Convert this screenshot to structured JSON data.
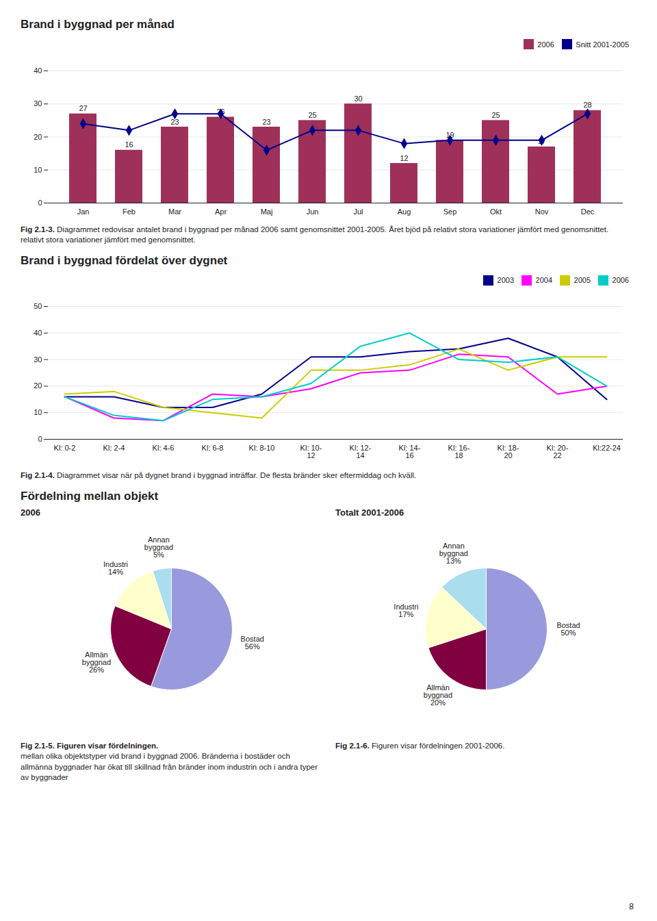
{
  "chart_data": [
    {
      "type": "bar",
      "title": "Brand i byggnad per månad",
      "categories": [
        "Jan",
        "Feb",
        "Mar",
        "Apr",
        "Maj",
        "Jun",
        "Jul",
        "Aug",
        "Sep",
        "Okt",
        "Nov",
        "Dec"
      ],
      "series": [
        {
          "name": "2006",
          "type": "bar",
          "color": "#9e3059",
          "data_labels": true,
          "values": [
            27,
            16,
            23,
            26,
            23,
            25,
            30,
            12,
            19,
            25,
            17,
            28
          ]
        },
        {
          "name": "Snitt 2001-2005",
          "type": "line",
          "color": "#00008b",
          "marker": "diamond",
          "values": [
            24,
            22,
            27,
            27,
            16,
            22,
            22,
            18,
            19,
            19,
            19,
            27
          ]
        }
      ],
      "ylim": [
        0,
        40
      ],
      "yticks": [
        0,
        10,
        20,
        30,
        40
      ],
      "grid": true,
      "legend": "upper right",
      "caption": [
        [
          "Fig 2.1-3.",
          " Diagrammet redovisar antalet brand i byggnad per månad 2006 samt genomsnittet 2001-2005. Året bjöd på relativt stora variationer jämfört med genomsnittet."
        ],
        [
          "relativt stora variationer jämfört med genomsnittet."
        ]
      ]
    },
    {
      "type": "line",
      "title": "Brand i byggnad fördelat över dygnet",
      "categories": [
        "Kl: 0-2",
        "Kl: 2-4",
        "Kl: 4-6",
        "Kl: 6-8",
        "Kl: 8-10",
        "Kl: 10-\n12",
        "Kl: 12-\n14",
        "Kl: 14-\n16",
        "Kl: 16-\n18",
        "Kl: 18-\n20",
        "Kl: 20-\n22",
        "Kl:22-24"
      ],
      "series": [
        {
          "name": "2003",
          "color": "#00008b",
          "values": [
            16,
            16,
            12,
            12,
            17,
            31,
            31,
            33,
            34,
            38,
            31,
            15
          ]
        },
        {
          "name": "2004",
          "color": "#ff00ff",
          "values": [
            16,
            8,
            7,
            17,
            16,
            19,
            25,
            26,
            32,
            31,
            17,
            20
          ]
        },
        {
          "name": "2005",
          "color": "#cccc00",
          "values": [
            17,
            18,
            12,
            10,
            8,
            26,
            26,
            28,
            34,
            26,
            31,
            31
          ]
        },
        {
          "name": "2006",
          "color": "#00cccc",
          "values": [
            16,
            9,
            7,
            15,
            16,
            21,
            35,
            40,
            30,
            29,
            31,
            20
          ]
        }
      ],
      "ylim": [
        0,
        50
      ],
      "yticks": [
        0,
        10,
        20,
        30,
        40,
        50
      ],
      "grid": true,
      "legend": "upper right",
      "caption": [
        [
          "Fig 2.1-4.",
          " Diagrammet visar när på dygnet brand i byggnad inträffar. De flesta bränder sker eftermiddag och kväll."
        ]
      ]
    },
    {
      "type": "pie",
      "title": "2006",
      "categories": [
        "Bostad\n56%",
        "Allmän\nbyggnad\n26%",
        "Industri\n14%",
        "Annan\nbyggnad\n5%"
      ],
      "values": [
        56,
        26,
        14,
        5
      ],
      "colors": [
        "#9999dd",
        "#800040",
        "#ffffcc",
        "#aaddee"
      ],
      "caption": [
        [
          "Fig 2.1-5. Figuren visar fördelningen."
        ],
        [
          "mellan olika objektstyper vid brand i byggnad 2006. Bränderna i bostäder och allmänna byggnader har ökat till skillnad från bränder inom industrin och i andra typer av byggnader"
        ]
      ]
    },
    {
      "type": "pie",
      "title": "Totalt 2001-2006",
      "categories": [
        "Bostad\n50%",
        "Allmän\nbyggnad\n20%",
        "Industri\n17%",
        "Annan\nbyggnad\n13%"
      ],
      "values": [
        50,
        20,
        17,
        13
      ],
      "colors": [
        "#9999dd",
        "#800040",
        "#ffffcc",
        "#aaddee"
      ],
      "caption": [
        [
          "Fig 2.1-6.",
          " Figuren visar fördelningen 2001-2006."
        ]
      ]
    }
  ],
  "section_title": "Fördelning mellan objekt",
  "page_number": "8"
}
